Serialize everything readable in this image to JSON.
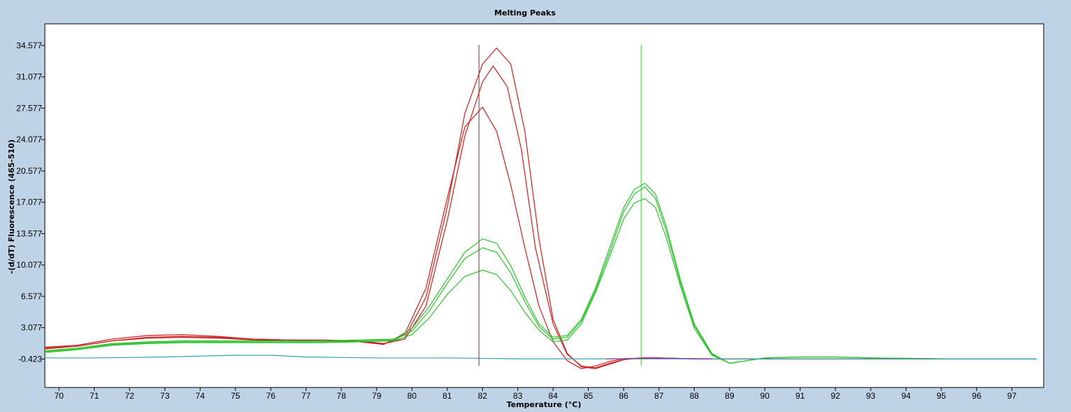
{
  "chart_data": {
    "type": "line",
    "title": "Melting Peaks",
    "xlabel": "Temperature (°C)",
    "ylabel": "-(d/dT) Fluorescence (465-510)",
    "xlim": [
      69.6,
      97.9
    ],
    "ylim": [
      -3.6,
      37.0
    ],
    "x_ticks": [
      70,
      71,
      72,
      73,
      74,
      75,
      76,
      77,
      78,
      79,
      80,
      81,
      82,
      83,
      84,
      85,
      86,
      87,
      88,
      89,
      90,
      91,
      92,
      93,
      94,
      95,
      96,
      97
    ],
    "y_ticks": [
      -0.423,
      3.077,
      6.577,
      10.077,
      13.577,
      17.077,
      20.577,
      24.077,
      27.577,
      31.077,
      34.577
    ],
    "y_tick_labels": [
      "-0.423",
      "3.077",
      "6.577",
      "10.077",
      "13.577",
      "17.077",
      "20.577",
      "24.077",
      "27.577",
      "31.077",
      "34.577"
    ],
    "grid": false,
    "colors": {
      "background": "#bfd3e6",
      "plot_bg": "#ffffff",
      "red": "#c81e1e",
      "green": "#2ec12e",
      "teal": "#3aa0b0",
      "purple": "#8a3aa0"
    },
    "markers": [
      {
        "x": 81.9,
        "color": "#c81e1e"
      },
      {
        "x": 86.5,
        "color": "#2ec12e"
      }
    ],
    "series": [
      {
        "color": "#c81e1e",
        "x": [
          69.6,
          70.5,
          71.5,
          72.5,
          73.5,
          74.5,
          75.5,
          76.5,
          77.5,
          78.5,
          79.2,
          79.8,
          80.4,
          81.0,
          81.5,
          82.0,
          82.4,
          82.8,
          83.2,
          83.6,
          84.0,
          84.4,
          84.8,
          85.2,
          85.6,
          86.0,
          86.5,
          87.0,
          87.5,
          88.0,
          90.0,
          92.0,
          94.0,
          96.0,
          97.7
        ],
        "values": [
          0.9,
          1.1,
          1.8,
          2.2,
          2.3,
          2.1,
          1.8,
          1.7,
          1.7,
          1.6,
          1.3,
          2.0,
          6.5,
          16.5,
          27.0,
          32.5,
          34.3,
          32.5,
          25.0,
          13.0,
          4.0,
          0.2,
          -1.3,
          -1.5,
          -1.0,
          -0.5,
          -0.3,
          -0.3,
          -0.35,
          -0.4,
          -0.4,
          -0.4,
          -0.4,
          -0.4,
          -0.4
        ]
      },
      {
        "color": "#c81e1e",
        "x": [
          69.6,
          70.5,
          71.5,
          72.5,
          73.5,
          74.5,
          75.5,
          76.5,
          77.5,
          78.5,
          79.2,
          79.8,
          80.4,
          81.0,
          81.5,
          82.0,
          82.3,
          82.7,
          83.1,
          83.5,
          84.0,
          84.4,
          84.8,
          85.2,
          85.6,
          86.0,
          86.5,
          87.0,
          87.5,
          88.0,
          90.0,
          92.0,
          94.0,
          96.0,
          97.7
        ],
        "values": [
          0.8,
          1.0,
          1.6,
          2.0,
          2.1,
          2.0,
          1.8,
          1.7,
          1.6,
          1.5,
          1.3,
          1.8,
          5.5,
          15.0,
          24.5,
          30.5,
          32.3,
          30.0,
          23.0,
          12.0,
          3.5,
          0.1,
          -1.2,
          -1.4,
          -0.9,
          -0.5,
          -0.3,
          -0.3,
          -0.35,
          -0.4,
          -0.4,
          -0.4,
          -0.4,
          -0.4,
          -0.4
        ]
      },
      {
        "color": "#c81e1e",
        "x": [
          69.6,
          70.5,
          71.5,
          72.5,
          73.5,
          74.5,
          75.5,
          76.5,
          77.5,
          78.5,
          79.2,
          79.8,
          80.4,
          81.0,
          81.5,
          82.0,
          82.4,
          82.8,
          83.2,
          83.6,
          84.0,
          84.4,
          84.8,
          85.2,
          85.6,
          86.0,
          86.5,
          87.0,
          87.5,
          88.0,
          90.0,
          92.0,
          94.0,
          96.0,
          97.7
        ],
        "values": [
          0.7,
          1.0,
          1.6,
          1.9,
          2.0,
          1.9,
          1.7,
          1.6,
          1.6,
          1.5,
          1.2,
          2.4,
          7.5,
          17.5,
          25.5,
          27.7,
          25.0,
          19.0,
          12.0,
          5.5,
          1.5,
          -0.6,
          -1.5,
          -1.2,
          -0.7,
          -0.4,
          -0.3,
          -0.3,
          -0.35,
          -0.4,
          -0.4,
          -0.4,
          -0.4,
          -0.4,
          -0.4
        ]
      },
      {
        "color": "#2ec12e",
        "x": [
          69.6,
          70.5,
          71.5,
          72.5,
          73.5,
          74.5,
          75.5,
          76.5,
          77.5,
          78.5,
          79.5,
          80.0,
          80.5,
          81.0,
          81.5,
          82.0,
          82.4,
          82.8,
          83.2,
          83.6,
          84.0,
          84.4,
          84.8,
          85.2,
          85.6,
          86.0,
          86.3,
          86.6,
          86.9,
          87.2,
          87.6,
          88.0,
          88.5,
          89.0,
          89.5,
          90.0,
          91.0,
          92.0,
          93.0,
          95.0,
          97.7
        ],
        "values": [
          0.5,
          0.8,
          1.3,
          1.5,
          1.6,
          1.6,
          1.6,
          1.6,
          1.6,
          1.7,
          1.8,
          3.0,
          5.5,
          8.5,
          11.5,
          13.0,
          12.5,
          10.0,
          6.5,
          3.5,
          2.0,
          2.2,
          4.0,
          7.5,
          12.0,
          16.5,
          18.5,
          19.2,
          18.0,
          14.5,
          8.5,
          3.5,
          0.2,
          -0.9,
          -0.6,
          -0.3,
          -0.2,
          -0.2,
          -0.3,
          -0.4,
          -0.4
        ]
      },
      {
        "color": "#2ec12e",
        "x": [
          69.6,
          70.5,
          71.5,
          72.5,
          73.5,
          74.5,
          75.5,
          76.5,
          77.5,
          78.5,
          79.5,
          80.0,
          80.5,
          81.0,
          81.5,
          82.0,
          82.4,
          82.8,
          83.2,
          83.6,
          84.0,
          84.4,
          84.8,
          85.2,
          85.6,
          86.0,
          86.3,
          86.6,
          86.9,
          87.2,
          87.6,
          88.0,
          88.5,
          89.0,
          89.5,
          90.0,
          91.0,
          92.0,
          93.0,
          95.0,
          97.7
        ],
        "values": [
          0.4,
          0.7,
          1.2,
          1.4,
          1.5,
          1.5,
          1.5,
          1.5,
          1.5,
          1.6,
          1.7,
          2.7,
          5.0,
          8.0,
          10.8,
          12.0,
          11.5,
          9.2,
          6.0,
          3.2,
          1.8,
          2.0,
          3.8,
          7.2,
          11.5,
          16.0,
          18.0,
          18.8,
          17.5,
          14.0,
          8.2,
          3.3,
          0.1,
          -0.9,
          -0.6,
          -0.3,
          -0.2,
          -0.2,
          -0.3,
          -0.4,
          -0.4
        ]
      },
      {
        "color": "#2ec12e",
        "x": [
          69.6,
          70.5,
          71.5,
          72.5,
          73.5,
          74.5,
          75.5,
          76.5,
          77.5,
          78.5,
          79.5,
          80.0,
          80.5,
          81.0,
          81.5,
          82.0,
          82.4,
          82.8,
          83.2,
          83.6,
          84.0,
          84.4,
          84.8,
          85.2,
          85.6,
          86.0,
          86.3,
          86.6,
          86.9,
          87.2,
          87.6,
          88.0,
          88.5,
          89.0,
          89.5,
          90.0,
          91.0,
          92.0,
          93.0,
          95.0,
          97.7
        ],
        "values": [
          0.3,
          0.6,
          1.1,
          1.3,
          1.4,
          1.4,
          1.4,
          1.4,
          1.4,
          1.5,
          1.6,
          2.3,
          4.2,
          6.8,
          8.8,
          9.5,
          9.0,
          7.2,
          4.8,
          2.8,
          1.5,
          1.7,
          3.5,
          7.0,
          11.0,
          15.2,
          17.0,
          17.5,
          16.5,
          13.2,
          7.8,
          3.0,
          0.0,
          -0.9,
          -0.6,
          -0.3,
          -0.2,
          -0.2,
          -0.3,
          -0.4,
          -0.4
        ]
      },
      {
        "color": "#3aa0b0",
        "x": [
          69.6,
          71.0,
          73.0,
          75.0,
          76.0,
          77.0,
          79.0,
          81.0,
          83.0,
          85.0,
          87.0,
          89.0,
          91.0,
          93.0,
          95.0,
          97.7
        ],
        "values": [
          -0.3,
          -0.3,
          -0.2,
          0.0,
          0.0,
          -0.2,
          -0.3,
          -0.3,
          -0.4,
          -0.4,
          -0.4,
          -0.4,
          -0.4,
          -0.4,
          -0.4,
          -0.4
        ]
      },
      {
        "color": "#8a3aa0",
        "x": [
          85.5,
          86.5,
          87.5,
          88.5
        ],
        "values": [
          -0.4,
          -0.35,
          -0.35,
          -0.4
        ]
      }
    ]
  }
}
